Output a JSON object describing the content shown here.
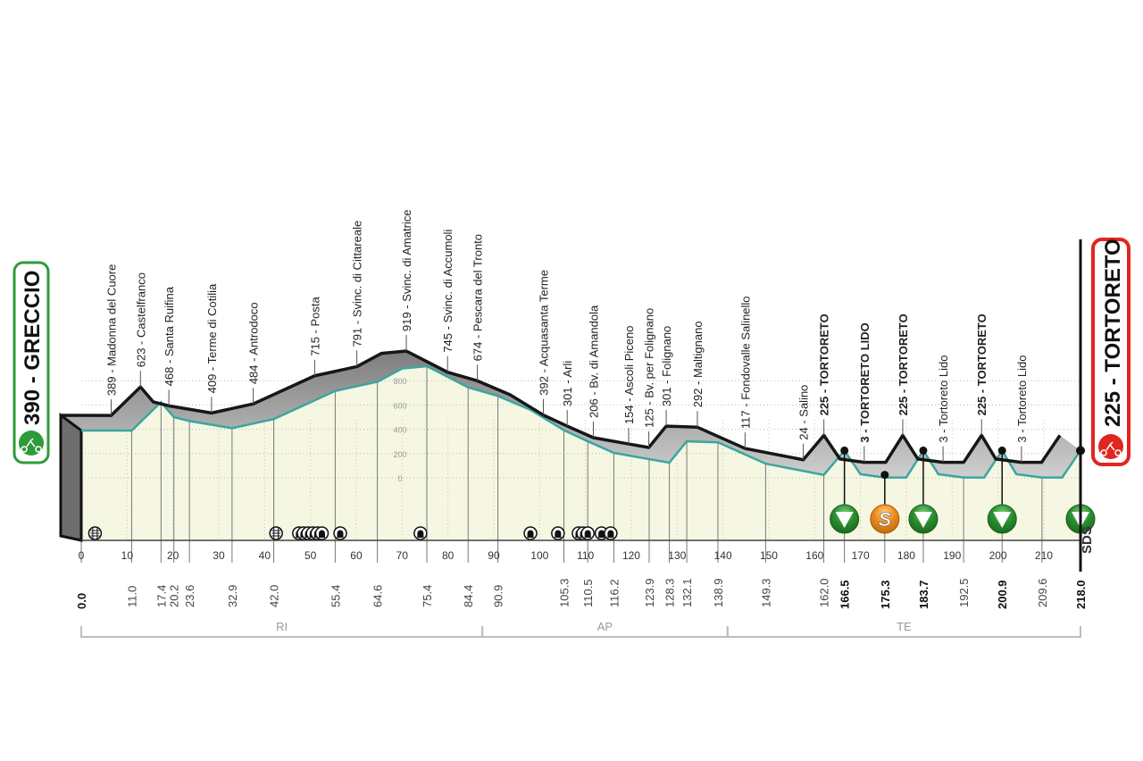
{
  "chart_data": {
    "type": "area",
    "xlabel": "",
    "ylabel": "",
    "xlim": [
      0,
      218
    ],
    "ylim": [
      0,
      1000
    ],
    "x_ticks": [
      0,
      10,
      20,
      30,
      40,
      50,
      60,
      70,
      80,
      90,
      100,
      110,
      120,
      130,
      140,
      150,
      160,
      170,
      180,
      190,
      200,
      210
    ],
    "y_ticks": [
      0,
      200,
      400,
      600,
      800
    ],
    "grid": true,
    "start": {
      "elevation": 390,
      "name": "GRECCIO",
      "label": "390 - GRECCIO",
      "km": 0.0
    },
    "finish": {
      "elevation": 225,
      "name": "TORTORETO",
      "label": "225 - TORTORETO",
      "km": 218.0
    },
    "waypoints": [
      {
        "km": 11.0,
        "elevation": 389,
        "label": "389 - Madonna del Cuore",
        "bold": false
      },
      {
        "km": 17.4,
        "elevation": 623,
        "label": "623 - Castelfranco",
        "bold": false
      },
      {
        "km": 23.6,
        "elevation": 468,
        "label": "468 - Santa Ruifina",
        "bold": false
      },
      {
        "km": 32.9,
        "elevation": 409,
        "label": "409 - Terme di Cotilia",
        "bold": false
      },
      {
        "km": 42.0,
        "elevation": 484,
        "label": "484 - Antrodoco",
        "bold": false
      },
      {
        "km": 55.4,
        "elevation": 715,
        "label": "715 - Posta",
        "bold": false
      },
      {
        "km": 64.6,
        "elevation": 791,
        "label": "791 - Svinc. di Cittareale",
        "bold": false
      },
      {
        "km": 75.4,
        "elevation": 919,
        "label": "919 - Svinc. di Amatrice",
        "bold": false
      },
      {
        "km": 84.4,
        "elevation": 745,
        "label": "745 - Svinc. di Accumoli",
        "bold": false
      },
      {
        "km": 90.9,
        "elevation": 674,
        "label": "674 - Pescara del Tronto",
        "bold": false
      },
      {
        "km": 105.3,
        "elevation": 392,
        "label": "392 - Acquasanta Terme",
        "bold": false
      },
      {
        "km": 110.5,
        "elevation": 301,
        "label": "301 - Arli",
        "bold": false
      },
      {
        "km": 116.2,
        "elevation": 206,
        "label": "206 - Bv. di Amandola",
        "bold": false
      },
      {
        "km": 123.9,
        "elevation": 154,
        "label": "154 - Ascoli Piceno",
        "bold": false
      },
      {
        "km": 128.3,
        "elevation": 125,
        "label": "125 - Bv. per Folignano",
        "bold": false
      },
      {
        "km": 132.1,
        "elevation": 301,
        "label": "301 - Folignano",
        "bold": false
      },
      {
        "km": 138.9,
        "elevation": 292,
        "label": "292 - Maltignano",
        "bold": false
      },
      {
        "km": 149.3,
        "elevation": 117,
        "label": "117 - Fondovalle Salinello",
        "bold": false
      },
      {
        "km": 162.0,
        "elevation": 24,
        "label": "24 - Salino",
        "bold": false
      },
      {
        "km": 166.5,
        "elevation": 225,
        "label": "225 - TORTORETO",
        "bold": true
      },
      {
        "km": 175.3,
        "elevation": 3,
        "label": "3 - TORTORETO LIDO",
        "bold": true
      },
      {
        "km": 183.7,
        "elevation": 225,
        "label": "225 - TORTORETO",
        "bold": true
      },
      {
        "km": 192.5,
        "elevation": 3,
        "label": "3 - Tortoreto Lido",
        "bold": false
      },
      {
        "km": 200.9,
        "elevation": 225,
        "label": "225 - TORTORETO",
        "bold": true
      },
      {
        "km": 209.6,
        "elevation": 3,
        "label": "3 - Tortoreto Lido",
        "bold": false
      }
    ],
    "profile": [
      [
        0,
        390
      ],
      [
        11.0,
        389
      ],
      [
        17.4,
        623
      ],
      [
        20.2,
        500
      ],
      [
        23.6,
        468
      ],
      [
        32.9,
        409
      ],
      [
        42.0,
        484
      ],
      [
        55.4,
        715
      ],
      [
        64.6,
        791
      ],
      [
        70,
        900
      ],
      [
        75.4,
        919
      ],
      [
        84.4,
        745
      ],
      [
        90.9,
        674
      ],
      [
        98,
        560
      ],
      [
        105.3,
        392
      ],
      [
        110.5,
        301
      ],
      [
        116.2,
        206
      ],
      [
        123.9,
        154
      ],
      [
        128.3,
        125
      ],
      [
        132.1,
        301
      ],
      [
        138.9,
        292
      ],
      [
        149.3,
        117
      ],
      [
        162.0,
        24
      ],
      [
        166.5,
        225
      ],
      [
        170,
        30
      ],
      [
        175.3,
        3
      ],
      [
        180,
        3
      ],
      [
        183.7,
        225
      ],
      [
        187,
        30
      ],
      [
        192.5,
        3
      ],
      [
        197,
        3
      ],
      [
        200.9,
        225
      ],
      [
        204,
        30
      ],
      [
        209.6,
        3
      ],
      [
        214,
        3
      ],
      [
        218.0,
        225
      ]
    ],
    "km_markers": [
      {
        "km": "0.0",
        "bold": true
      },
      {
        "km": "11.0",
        "bold": false
      },
      {
        "km": "17.4",
        "bold": false
      },
      {
        "km": "20.2",
        "bold": false
      },
      {
        "km": "23.6",
        "bold": false
      },
      {
        "km": "32.9",
        "bold": false
      },
      {
        "km": "42.0",
        "bold": false
      },
      {
        "km": "55.4",
        "bold": false
      },
      {
        "km": "64.6",
        "bold": false
      },
      {
        "km": "75.4",
        "bold": false
      },
      {
        "km": "84.4",
        "bold": false
      },
      {
        "km": "90.9",
        "bold": false
      },
      {
        "km": "105.3",
        "bold": false
      },
      {
        "km": "110.5",
        "bold": false
      },
      {
        "km": "116.2",
        "bold": false
      },
      {
        "km": "123.9",
        "bold": false
      },
      {
        "km": "128.3",
        "bold": false
      },
      {
        "km": "132.1",
        "bold": false
      },
      {
        "km": "138.9",
        "bold": false
      },
      {
        "km": "149.3",
        "bold": false
      },
      {
        "km": "162.0",
        "bold": false
      },
      {
        "km": "166.5",
        "bold": true
      },
      {
        "km": "175.3",
        "bold": true
      },
      {
        "km": "183.7",
        "bold": true
      },
      {
        "km": "192.5",
        "bold": false
      },
      {
        "km": "200.9",
        "bold": true
      },
      {
        "km": "209.6",
        "bold": false
      },
      {
        "km": "218.0",
        "bold": true
      }
    ],
    "climb_markers": [
      166.5,
      183.7,
      200.9,
      218.0
    ],
    "sprint_markers": [
      {
        "km": 175.3,
        "symbol": "S"
      }
    ],
    "level_crossings": [
      3,
      42.5
    ],
    "tunnels": [
      47.5,
      48.5,
      49.5,
      50.5,
      51.5,
      52.5,
      56.5,
      74,
      98,
      104,
      108.5,
      109.5,
      110.5,
      113.5,
      115.5
    ],
    "provinces": [
      {
        "name": "RI",
        "from": 0,
        "to": 87.5
      },
      {
        "name": "AP",
        "from": 87.5,
        "to": 141
      },
      {
        "name": "TE",
        "from": 141,
        "to": 218
      }
    ],
    "logo": "SDS",
    "colors": {
      "start": "#2e9b3a",
      "finish": "#e0261f",
      "profile_line": "#3aa6a0",
      "ground": "#f6f7e3",
      "climb": "#2b8f2f",
      "sprint": "#f08a1c"
    }
  }
}
